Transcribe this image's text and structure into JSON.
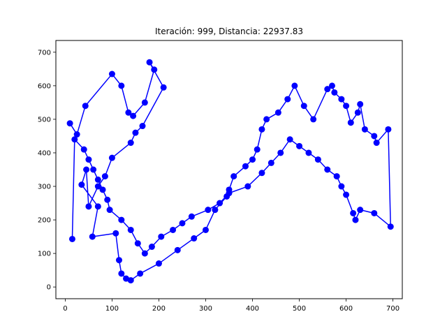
{
  "chart_data": {
    "type": "line",
    "title": "Iteración: 999, Distancia: 22937.83",
    "xlabel": "",
    "ylabel": "",
    "xlim": [
      -20,
      720
    ],
    "ylim": [
      -35,
      735
    ],
    "xticks": [
      0,
      100,
      200,
      300,
      400,
      500,
      600,
      700
    ],
    "yticks": [
      0,
      100,
      200,
      300,
      400,
      500,
      600,
      700
    ],
    "grid": false,
    "line_color": "#0000ff",
    "marker": "circle",
    "x": [
      10,
      25,
      43,
      100,
      120,
      135,
      145,
      170,
      190,
      180,
      210,
      165,
      150,
      140,
      100,
      85,
      70,
      50,
      45,
      35,
      70,
      58,
      108,
      115,
      120,
      130,
      140,
      160,
      200,
      240,
      275,
      300,
      320,
      345,
      350,
      360,
      385,
      400,
      410,
      420,
      430,
      455,
      475,
      490,
      510,
      530,
      560,
      570,
      575,
      590,
      600,
      610,
      625,
      630,
      640,
      660,
      665,
      690,
      695,
      660,
      630,
      620,
      615,
      600,
      590,
      580,
      560,
      540,
      520,
      500,
      480,
      460,
      440,
      420,
      390,
      350,
      330,
      305,
      270,
      250,
      230,
      205,
      185,
      170,
      155,
      140,
      120,
      95,
      90,
      80,
      70,
      60,
      50,
      40,
      20,
      15
    ],
    "y": [
      488,
      455,
      540,
      635,
      600,
      520,
      510,
      550,
      648,
      670,
      595,
      480,
      460,
      430,
      385,
      330,
      300,
      240,
      350,
      305,
      240,
      150,
      160,
      80,
      40,
      25,
      20,
      40,
      70,
      110,
      145,
      170,
      230,
      270,
      290,
      330,
      360,
      380,
      410,
      470,
      500,
      520,
      560,
      600,
      540,
      500,
      590,
      600,
      580,
      560,
      540,
      490,
      520,
      545,
      470,
      450,
      430,
      470,
      180,
      220,
      230,
      200,
      220,
      275,
      300,
      330,
      350,
      380,
      400,
      420,
      440,
      400,
      370,
      340,
      300,
      280,
      250,
      230,
      210,
      190,
      170,
      150,
      120,
      100,
      130,
      170,
      200,
      230,
      260,
      290,
      320,
      350,
      380,
      410,
      440,
      143
    ]
  }
}
